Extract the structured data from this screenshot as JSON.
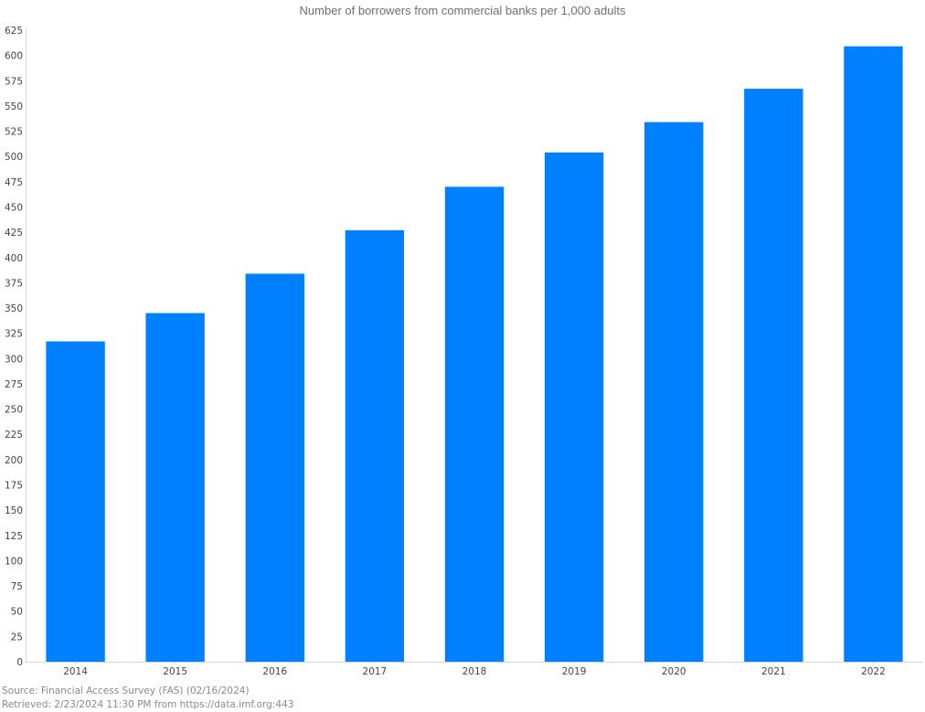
{
  "chart_data": {
    "type": "bar",
    "title": "Number of borrowers from commercial banks per 1,000 adults",
    "xlabel": "",
    "ylabel": "",
    "categories": [
      "2014",
      "2015",
      "2016",
      "2017",
      "2018",
      "2019",
      "2020",
      "2021",
      "2022"
    ],
    "values": [
      317,
      345,
      384,
      427,
      470,
      504,
      534,
      567,
      609
    ],
    "ylim": [
      0,
      625
    ],
    "yticks": [
      0,
      25,
      50,
      75,
      100,
      125,
      150,
      175,
      200,
      225,
      250,
      275,
      300,
      325,
      350,
      375,
      400,
      425,
      450,
      475,
      500,
      525,
      550,
      575,
      600,
      625
    ],
    "grid": false,
    "legend": "none",
    "bar_color": "#0080ff"
  },
  "footer": {
    "source": "Source: Financial Access Survey (FAS) (02/16/2024)",
    "retrieved": "Retrieved: 2/23/2024 11:30 PM from https://data.imf.org:443"
  }
}
